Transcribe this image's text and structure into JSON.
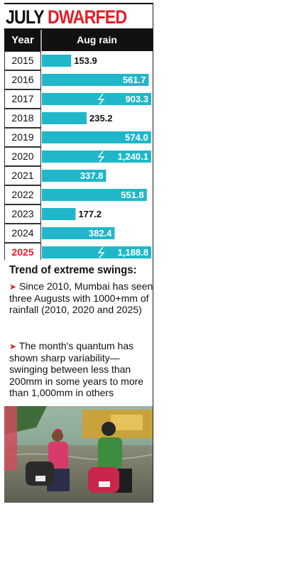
{
  "title": {
    "part1": "JULY",
    "part2": "DWARFED"
  },
  "colors": {
    "bar": "#1fb7c9",
    "header_bg": "#111111",
    "highlight": "#e0202b",
    "text": "#111111"
  },
  "chart_data": {
    "type": "bar",
    "orientation": "horizontal",
    "column_headers": [
      "Year",
      "Aug rain"
    ],
    "categories": [
      "2015",
      "2016",
      "2017",
      "2018",
      "2019",
      "2020",
      "2021",
      "2022",
      "2023",
      "2024",
      "2025"
    ],
    "value_labels": [
      "153.9",
      "561.7",
      "903.3",
      "235.2",
      "574.0",
      "1,240.1",
      "337.8",
      "551.8",
      "177.2",
      "382.4",
      "1,188.8"
    ],
    "values": [
      153.9,
      561.7,
      903.3,
      235.2,
      574.0,
      1240.1,
      337.8,
      551.8,
      177.2,
      382.4,
      1188.8
    ],
    "broken_axis_bars": [
      "2017",
      "2020",
      "2025"
    ],
    "highlight_category": "2025",
    "label_position": "inside-end for long bars, outside-end for short bars"
  },
  "trend": {
    "heading": "Trend of extreme swings:",
    "bullets": [
      "Since 2010, Mumbai has seen three Augusts with 1000+mm of rainfall (2010, 2020 and 2025)",
      "The month's quantum has shown sharp variability—swinging between less than 200mm in some years to more than 1,000mm in others"
    ]
  },
  "photo": {
    "subject": "commuters pushing scooters through a waterlogged street"
  }
}
